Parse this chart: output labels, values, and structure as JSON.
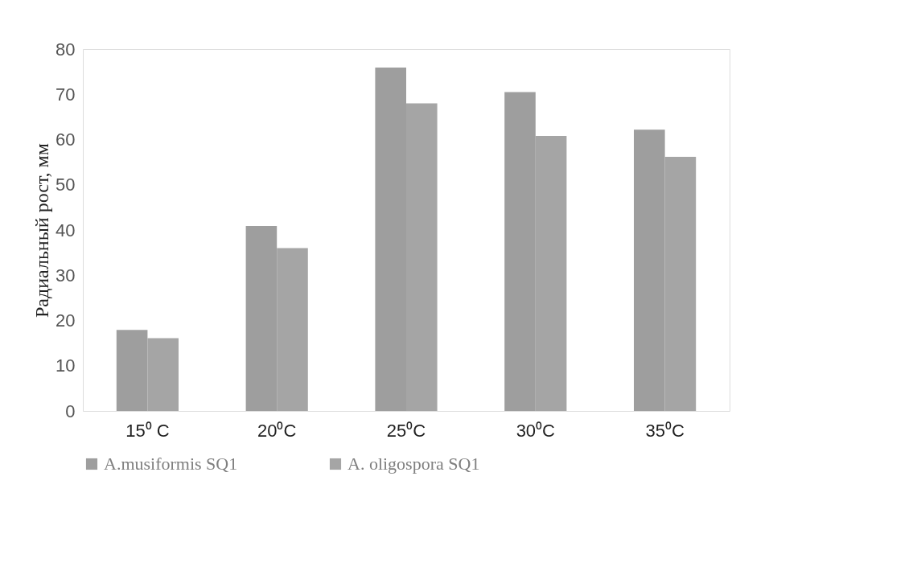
{
  "chart_data": {
    "type": "bar",
    "ylabel": "Радиальный рост, мм",
    "categories": [
      "15⁰ C",
      "20⁰C",
      "25⁰C",
      "30⁰C",
      "35⁰C"
    ],
    "series": [
      {
        "name": "A.musiformis SQ1",
        "color": "#9e9e9e",
        "values": [
          17.9,
          40.9,
          75.9,
          70.5,
          62.2
        ]
      },
      {
        "name": "A. oligospora  SQ1",
        "color": "#a5a5a5",
        "values": [
          16.1,
          36.0,
          68.0,
          60.8,
          56.2
        ]
      }
    ],
    "ylim": [
      0,
      80
    ],
    "yticks": [
      0,
      10,
      20,
      30,
      40,
      50,
      60,
      70,
      80
    ],
    "grid": false,
    "legend": "bottom"
  }
}
